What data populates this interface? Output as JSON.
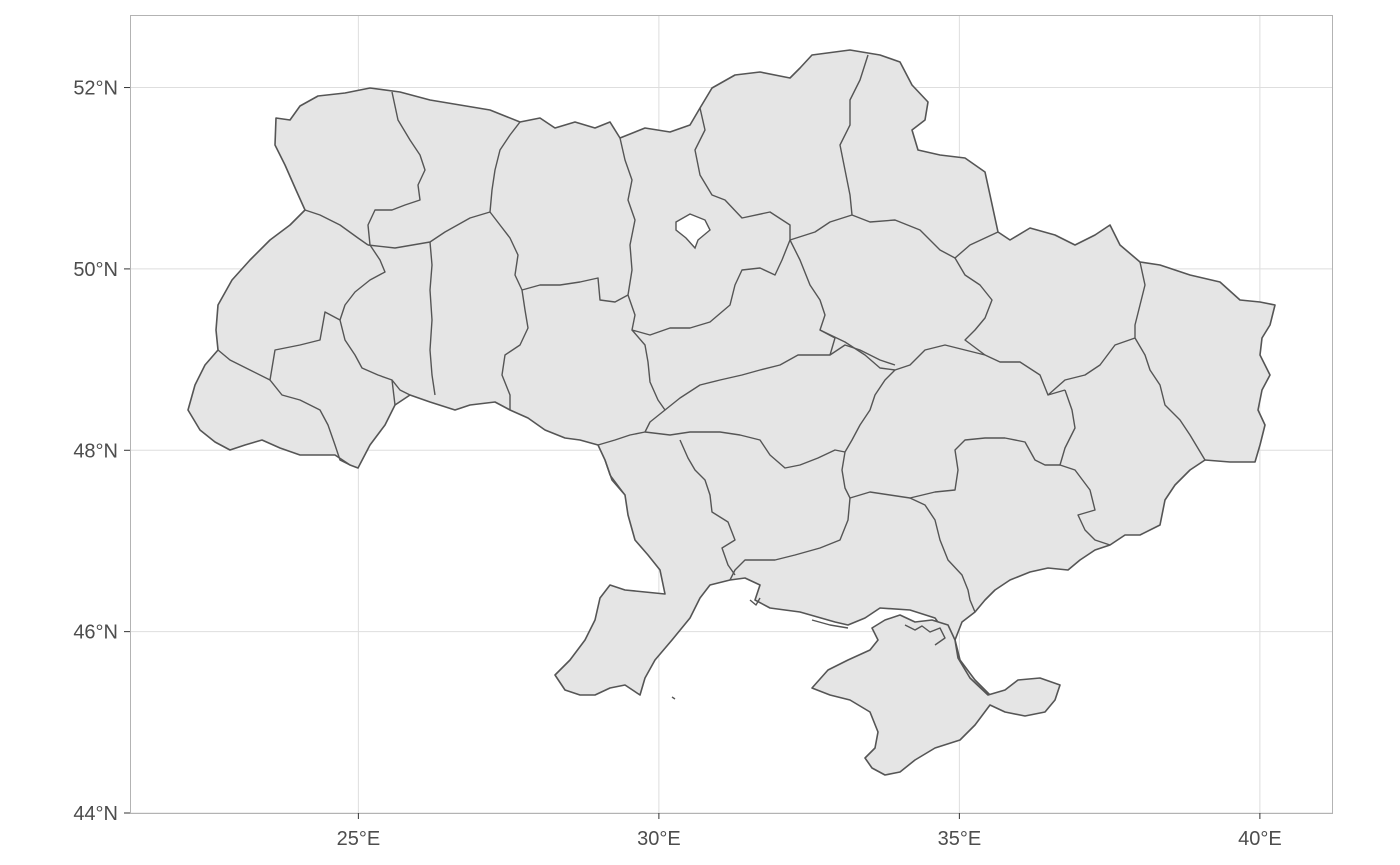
{
  "map": {
    "type": "choropleth-outline",
    "fill_color": "#e5e5e5",
    "stroke_color": "#555555",
    "grid_color": "#dedede",
    "panel_border_color": "#b3b3b3",
    "x_axis": {
      "range": [
        21.2,
        41.2
      ],
      "ticks": [
        {
          "value": 25,
          "label": "25°E"
        },
        {
          "value": 30,
          "label": "30°E"
        },
        {
          "value": 35,
          "label": "35°E"
        },
        {
          "value": 40,
          "label": "40°E"
        }
      ]
    },
    "y_axis": {
      "range": [
        44,
        52.8
      ],
      "ticks": [
        {
          "value": 52,
          "label": "52°N"
        },
        {
          "value": 50,
          "label": "50°N"
        },
        {
          "value": 48,
          "label": "48°N"
        },
        {
          "value": 46,
          "label": "46°N"
        },
        {
          "value": 44,
          "label": "44°N"
        }
      ]
    }
  }
}
